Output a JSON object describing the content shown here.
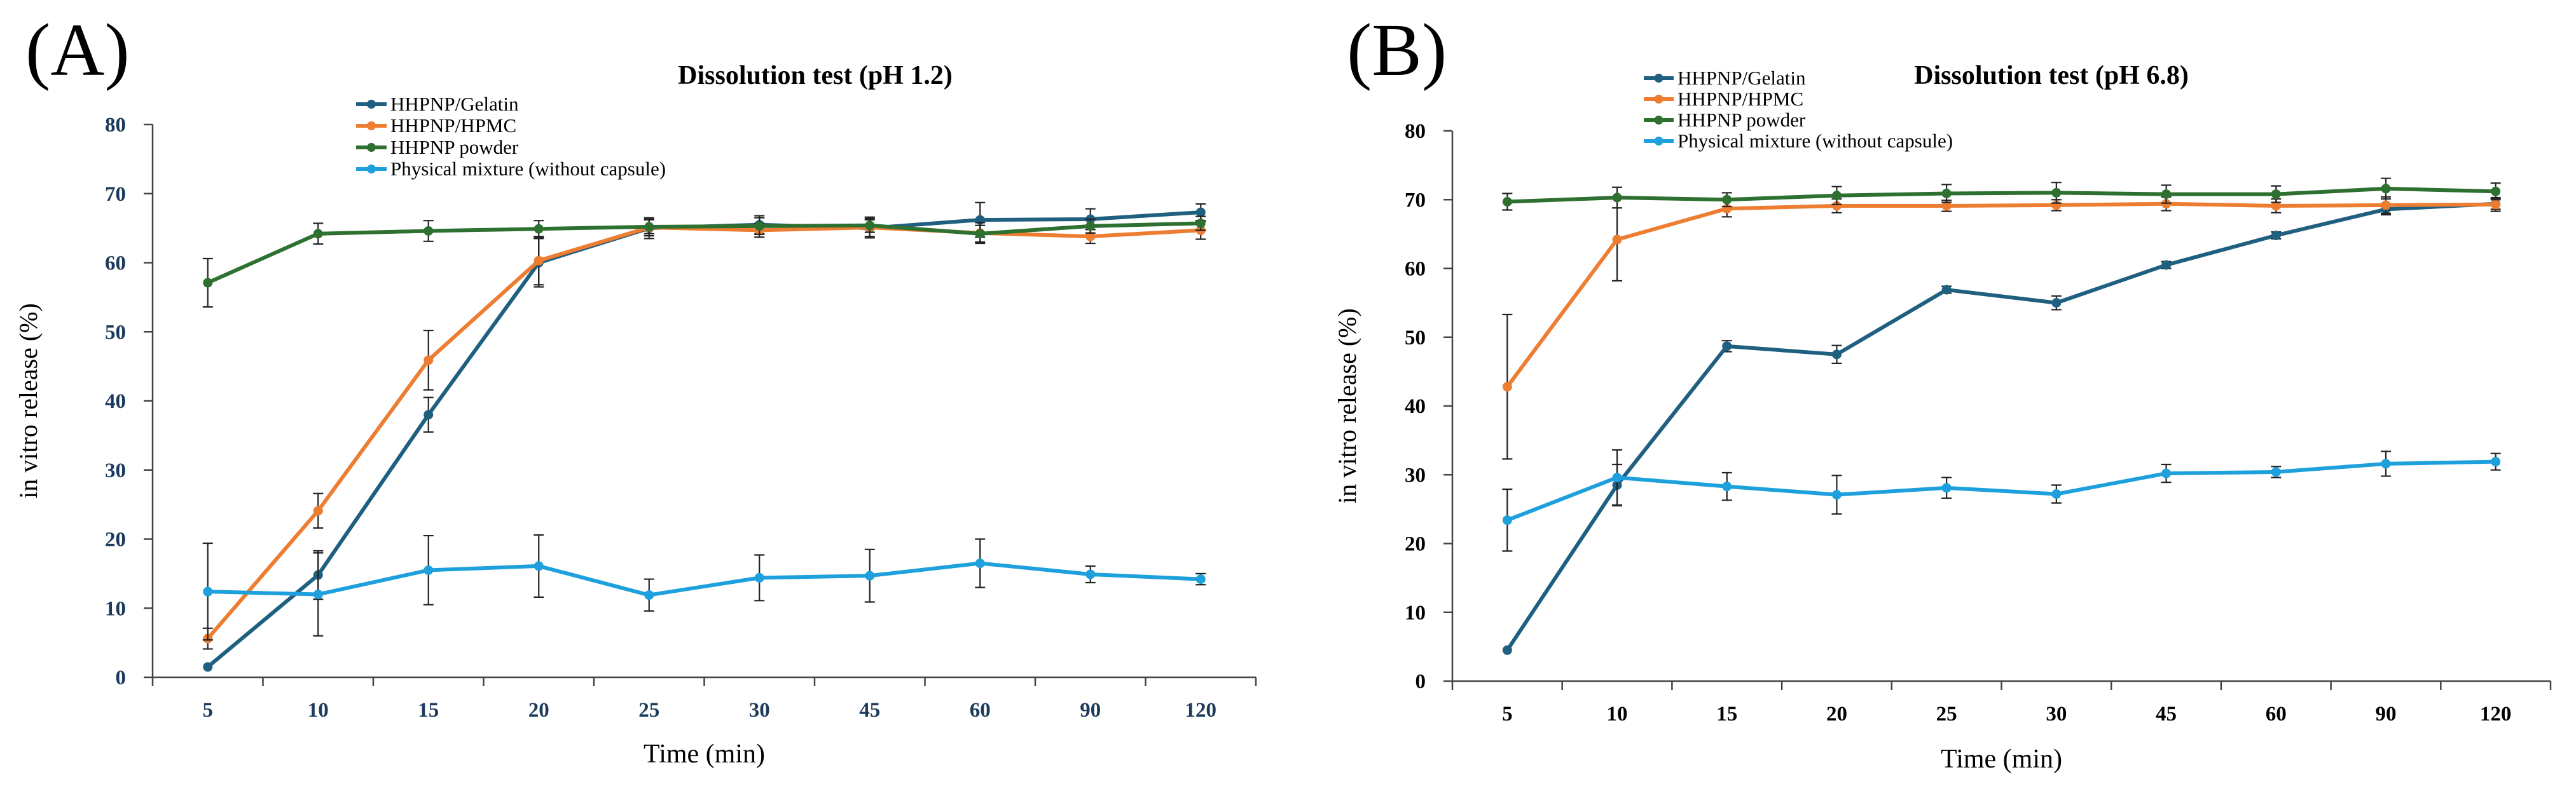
{
  "panels": [
    {
      "panel_label": "(A)",
      "chart_data": {
        "type": "line",
        "title": "Dissolution test (pH 1.2)",
        "xlabel": "Time (min)",
        "ylabel": "in vitro release  (%)",
        "categories": [
          "5",
          "10",
          "15",
          "20",
          "25",
          "30",
          "45",
          "60",
          "90",
          "120"
        ],
        "ylim": [
          0,
          80
        ],
        "yticks": [
          "0",
          "10",
          "20",
          "30",
          "40",
          "50",
          "60",
          "70",
          "80"
        ],
        "grid": false,
        "legend_position": "top",
        "series": [
          {
            "name": "HHPNP/Gelatin",
            "color": "#1f5f7f",
            "values": [
              1.5,
              14.8,
              38,
              60,
              65,
              65.5,
              65,
              66.2,
              66.3,
              67.3
            ],
            "errors": [
              0,
              3.5,
              2.5,
              3.5,
              1.5,
              1.3,
              1.2,
              2.5,
              1.5,
              1.2
            ]
          },
          {
            "name": "HHPNP/HPMC",
            "color": "#ed7d31",
            "values": [
              5.6,
              24.1,
              45.9,
              60.3,
              65.1,
              64.7,
              65.1,
              64.3,
              63.8,
              64.7
            ],
            "errors": [
              1.5,
              2.5,
              4.3,
              3.5,
              1.2,
              1,
              1.5,
              1.5,
              1,
              1.3
            ]
          },
          {
            "name": "HHPNP powder",
            "color": "#2e7030",
            "values": [
              57.1,
              64.2,
              64.6,
              64.9,
              65.2,
              65.3,
              65.4,
              64.2,
              65.3,
              65.7
            ],
            "errors": [
              3.5,
              1.5,
              1.5,
              1.2,
              1,
              1.2,
              1,
              1.2,
              1,
              1
            ]
          },
          {
            "name": "Physical mixture (without capsule)",
            "color": "#1ea0dc",
            "values": [
              12.4,
              12,
              15.5,
              16.1,
              11.9,
              14.4,
              14.7,
              16.5,
              14.9,
              14.2
            ],
            "errors": [
              7,
              6,
              5,
              4.5,
              2.3,
              3.3,
              3.8,
              3.5,
              1.2,
              0.8
            ]
          }
        ]
      }
    },
    {
      "panel_label": "(B)",
      "chart_data": {
        "type": "line",
        "title": "Dissolution test (pH 6.8)",
        "xlabel": "Time (min)",
        "ylabel": "in vitro release (%)",
        "categories": [
          "5",
          "10",
          "15",
          "20",
          "25",
          "30",
          "45",
          "60",
          "90",
          "120"
        ],
        "ylim": [
          0,
          80
        ],
        "yticks": [
          "0",
          "10",
          "20",
          "30",
          "40",
          "50",
          "60",
          "70",
          "80"
        ],
        "grid": false,
        "legend_position": "top",
        "series": [
          {
            "name": "HHPNP/Gelatin",
            "color": "#1f5f7f",
            "values": [
              4.5,
              28.5,
              48.7,
              47.5,
              56.9,
              55,
              60.5,
              64.8,
              68.6,
              69.4
            ],
            "errors": [
              0,
              3,
              0.8,
              1.3,
              0.5,
              1,
              0.5,
              0.5,
              0.8,
              0.8
            ]
          },
          {
            "name": "HHPNP/HPMC",
            "color": "#ed7d31",
            "values": [
              42.8,
              64.2,
              68.7,
              69.1,
              69.1,
              69.2,
              69.4,
              69.1,
              69.2,
              69.3
            ],
            "errors": [
              10.5,
              6,
              1.2,
              1,
              0.8,
              0.8,
              1,
              1,
              1.2,
              1
            ]
          },
          {
            "name": "HHPNP powder",
            "color": "#2e7030",
            "values": [
              69.7,
              70.3,
              70,
              70.6,
              70.9,
              71,
              70.8,
              70.8,
              71.6,
              71.2
            ],
            "errors": [
              1.2,
              1.5,
              1,
              1.3,
              1.3,
              1.5,
              1.3,
              1.2,
              1.5,
              1.2
            ]
          },
          {
            "name": "Physical mixture (without capsule)",
            "color": "#1ea0dc",
            "values": [
              23.4,
              29.6,
              28.3,
              27.1,
              28.1,
              27.2,
              30.2,
              30.4,
              31.6,
              31.9
            ],
            "errors": [
              4.5,
              4,
              2,
              2.8,
              1.5,
              1.3,
              1.3,
              0.8,
              1.8,
              1.2
            ]
          }
        ]
      }
    }
  ]
}
